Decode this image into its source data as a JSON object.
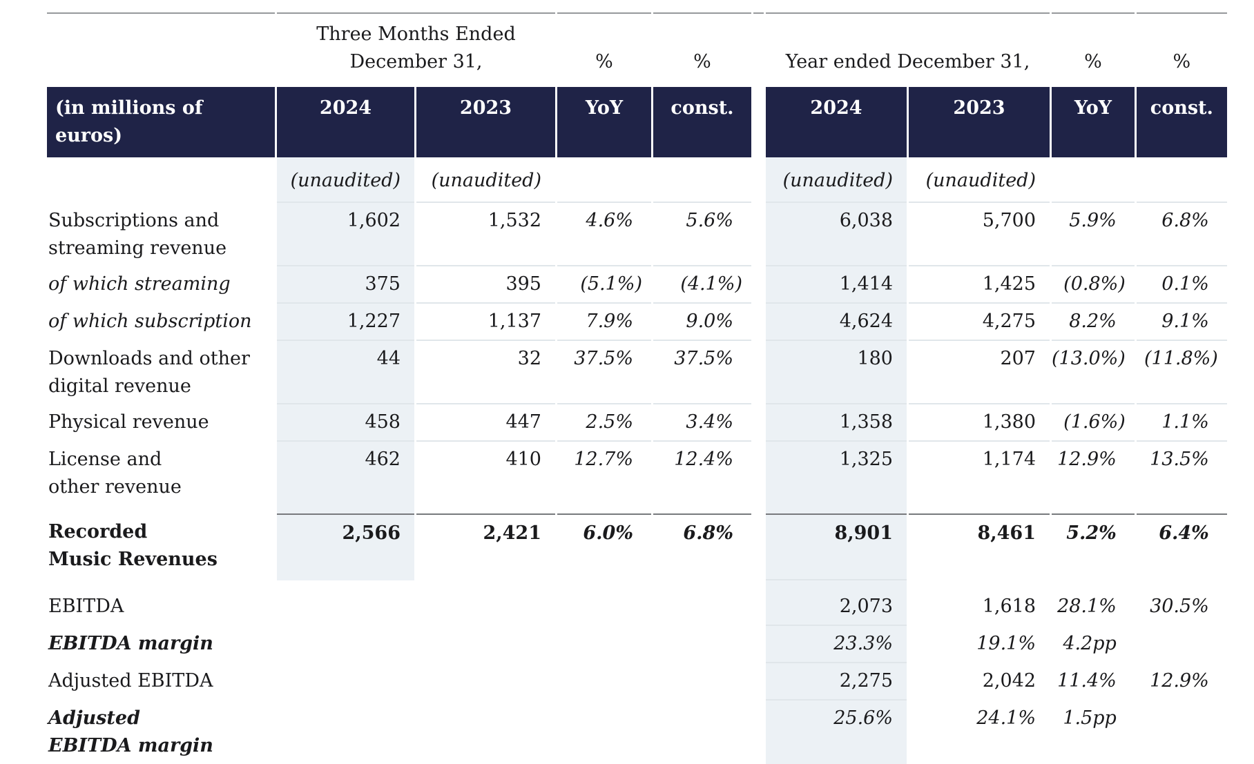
{
  "colors": {
    "navy": "#1f2347",
    "shade": "#ecf1f5",
    "faint": "#e0e6ea",
    "ruletop": "#96989b",
    "ruledark": "#77797c",
    "text": "#1a1a1c"
  },
  "table": {
    "header": {
      "group_q_line1": "Three Months Ended",
      "group_q_line2": "December 31,",
      "group_fy_line2": "Year ended December 31,",
      "pct": "%",
      "unit_label": "(in millions of euros)",
      "col_2024": "2024",
      "col_2023": "2023",
      "col_yoy": "YoY",
      "col_const": "const."
    },
    "rows": [
      {
        "name": "unaudited",
        "classes": "r-unaudited",
        "label_lines": [],
        "q_shade": true,
        "bb": true,
        "values_italic": true,
        "values": {
          "q2024": "(unaudited)",
          "q2023": "(unaudited)",
          "fy2024": "(unaudited)",
          "fy2023": "(unaudited)"
        }
      },
      {
        "name": "subscriptions-streaming",
        "label_lines": [
          "Subscriptions and",
          "streaming revenue"
        ],
        "q_shade": true,
        "bb": true,
        "values": {
          "q2024": "1,602",
          "q2023": "1,532",
          "qyoy": "4.6%",
          "qconst": "5.6%",
          "fy2024": "6,038",
          "fy2023": "5,700",
          "fyyoy": "5.9%",
          "fyconst": "6.8%"
        }
      },
      {
        "name": "of-which-streaming",
        "label_style": "italic",
        "label_lines": [
          "of which streaming"
        ],
        "q_shade": true,
        "bb": true,
        "values": {
          "q2024": "375",
          "q2023": "395",
          "qyoy": "(5.1%)",
          "qconst": "(4.1%)",
          "fy2024": "1,414",
          "fy2023": "1,425",
          "fyyoy": "(0.8%)",
          "fyconst": "0.1%"
        }
      },
      {
        "name": "of-which-subscription",
        "label_style": "italic",
        "label_lines": [
          "of which subscription"
        ],
        "q_shade": true,
        "bb": true,
        "values": {
          "q2024": "1,227",
          "q2023": "1,137",
          "qyoy": "7.9%",
          "qconst": "9.0%",
          "fy2024": "4,624",
          "fy2023": "4,275",
          "fyyoy": "8.2%",
          "fyconst": "9.1%"
        }
      },
      {
        "name": "downloads-digital",
        "label_lines": [
          "Downloads and other",
          "digital revenue"
        ],
        "q_shade": true,
        "bb": true,
        "values": {
          "q2024": "44",
          "q2023": "32",
          "qyoy": "37.5%",
          "qconst": "37.5%",
          "fy2024": "180",
          "fy2023": "207",
          "fyyoy": "(13.0%)",
          "fyconst": "(11.8%)"
        }
      },
      {
        "name": "physical-revenue",
        "label_lines": [
          "Physical revenue"
        ],
        "q_shade": true,
        "bb": true,
        "values": {
          "q2024": "458",
          "q2023": "447",
          "qyoy": "2.5%",
          "qconst": "3.4%",
          "fy2024": "1,358",
          "fy2023": "1,380",
          "fyyoy": "(1.6%)",
          "fyconst": "1.1%"
        }
      },
      {
        "name": "license-other",
        "classes": "r-license",
        "label_lines": [
          "License and",
          "other revenue"
        ],
        "q_shade": true,
        "values": {
          "q2024": "462",
          "q2023": "410",
          "qyoy": "12.7%",
          "qconst": "12.4%",
          "fy2024": "1,325",
          "fy2023": "1,174",
          "fyyoy": "12.9%",
          "fyconst": "13.5%"
        }
      },
      {
        "name": "recorded-music-revenues",
        "classes": "r-total",
        "label_style": "bold",
        "label_lines": [
          "Recorded",
          "Music Revenues"
        ],
        "q_shade": true,
        "bt": true,
        "fy_bb": true,
        "values_bold": true,
        "values": {
          "q2024": "2,566",
          "q2023": "2,421",
          "qyoy": "6.0%",
          "qconst": "6.8%",
          "fy2024": "8,901",
          "fy2023": "8,461",
          "fyyoy": "5.2%",
          "fyconst": "6.4%"
        }
      },
      {
        "name": "ebitda",
        "classes": "r-ebitda-first",
        "label_lines": [
          "EBITDA"
        ],
        "fy_bb": true,
        "values": {
          "fy2024": "2,073",
          "fy2023": "1,618",
          "fyyoy": "28.1%",
          "fyconst": "30.5%"
        }
      },
      {
        "name": "ebitda-margin",
        "label_style": "bold-italic",
        "label_lines": [
          "EBITDA margin"
        ],
        "fy_bb": true,
        "values_italic": true,
        "values": {
          "fy2024": "23.3%",
          "fy2023": "19.1%",
          "fyyoy": "4.2pp"
        }
      },
      {
        "name": "adjusted-ebitda",
        "label_lines": [
          "Adjusted EBITDA"
        ],
        "fy_bb": true,
        "values": {
          "fy2024": "2,275",
          "fy2023": "2,042",
          "fyyoy": "11.4%",
          "fyconst": "12.9%"
        }
      },
      {
        "name": "adjusted-ebitda-margin",
        "label_style": "bold-italic",
        "label_lines": [
          "Adjusted",
          "EBITDA margin"
        ],
        "last": true,
        "values_italic": true,
        "values": {
          "fy2024": "25.6%",
          "fy2023": "24.1%",
          "fyyoy": "1.5pp"
        }
      }
    ]
  }
}
